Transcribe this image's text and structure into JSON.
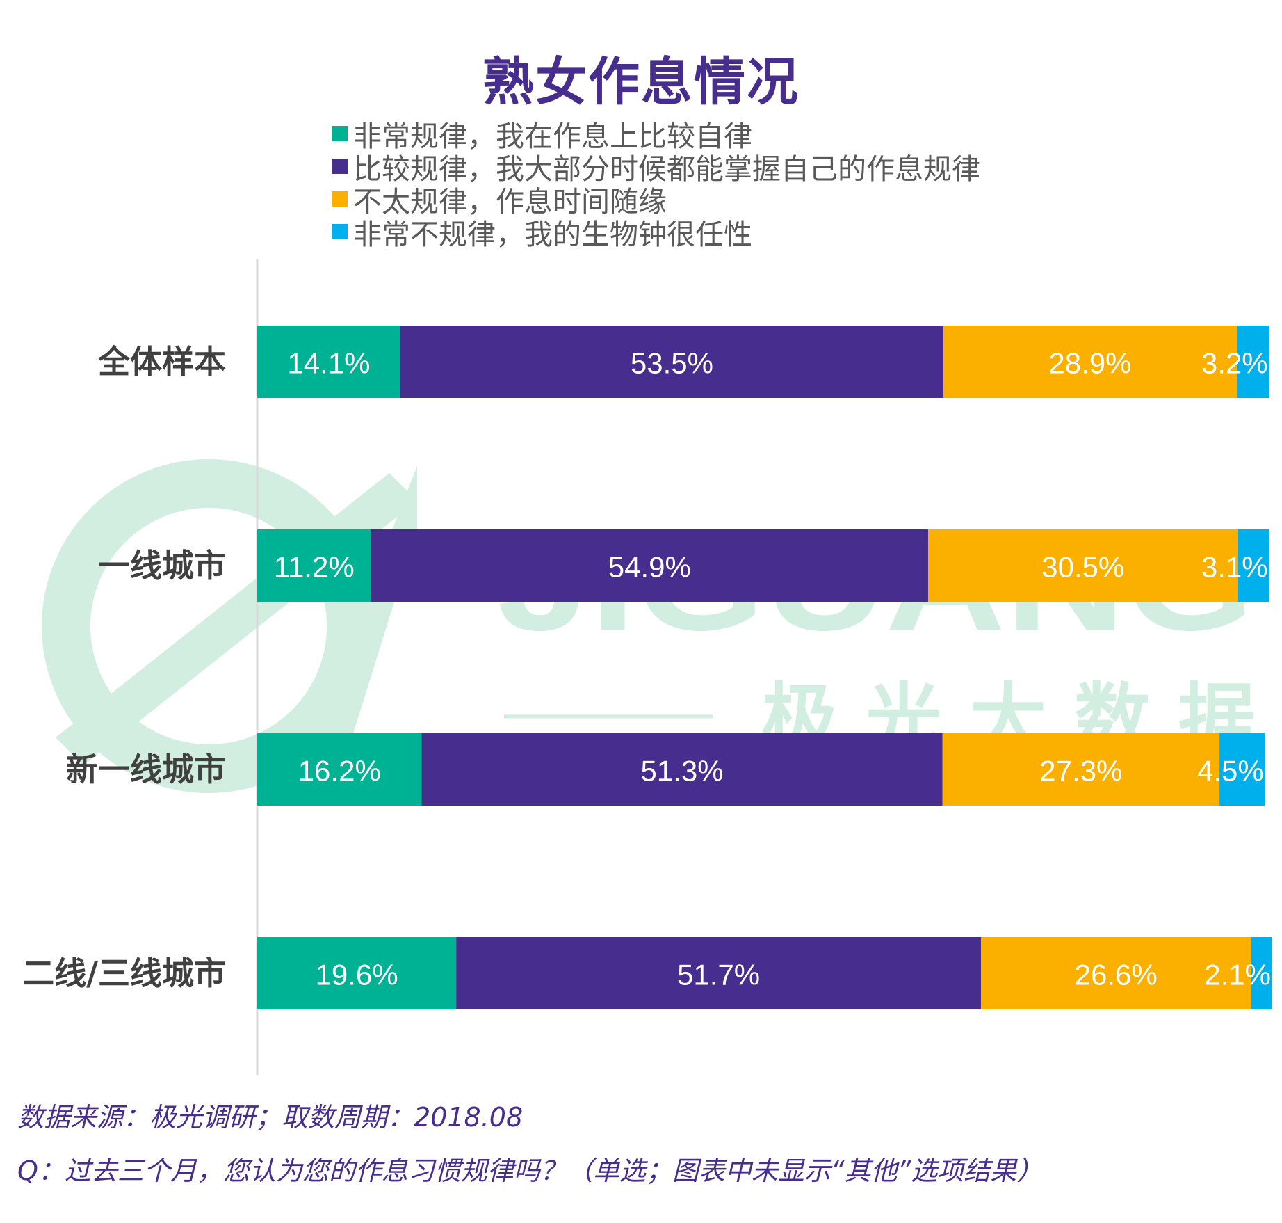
{
  "chart_data": {
    "type": "bar",
    "orientation": "horizontal",
    "stacked": true,
    "title": "熟女作息情况",
    "categories": [
      "全体样本",
      "一线城市",
      "新一线城市",
      "二线/三线城市"
    ],
    "series": [
      {
        "name": "非常规律，我在作息上比较自律",
        "color": "#00b294",
        "values": [
          14.1,
          11.2,
          16.2,
          19.6
        ]
      },
      {
        "name": "比较规律，我大部分时候都能掌握自己的作息规律",
        "color": "#472d8e",
        "values": [
          53.5,
          54.9,
          51.3,
          51.7
        ]
      },
      {
        "name": "不太规律，作息时间随缘",
        "color": "#fbb000",
        "values": [
          28.9,
          30.5,
          27.3,
          26.6
        ]
      },
      {
        "name": "非常不规律，我的生物钟很任性",
        "color": "#00b0ec",
        "values": [
          3.2,
          3.1,
          4.5,
          2.1
        ]
      }
    ],
    "value_suffix": "%",
    "xlabel": "",
    "ylabel": "",
    "xlim": [
      0,
      100
    ],
    "grid": false,
    "legend_position": "top"
  },
  "watermark": {
    "brand": "JIGUANG",
    "brand_cn": "极光大数据",
    "color": "#cfeee0"
  },
  "footer": {
    "source": "数据来源：极光调研；取数周期：2018.08",
    "question": "Q：过去三个月，您认为您的作息习惯规律吗？（单选；图表中未显示“其他”选项结果）"
  }
}
